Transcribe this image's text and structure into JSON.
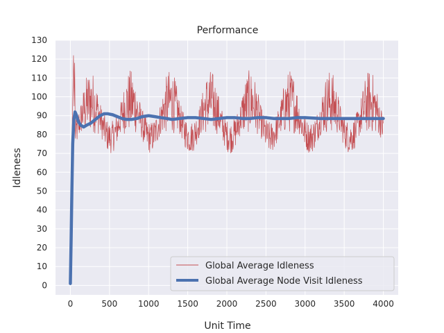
{
  "chart_data": {
    "type": "line",
    "title": "Performance",
    "xlabel": "Unit Time",
    "ylabel": "Idleness",
    "xlim": [
      -190,
      4190
    ],
    "ylim": [
      -5,
      130
    ],
    "xticks": [
      0,
      500,
      1000,
      1500,
      2000,
      2500,
      3000,
      3500,
      4000
    ],
    "xtick_labels": [
      "0",
      "500",
      "1000",
      "1500",
      "2000",
      "2500",
      "3000",
      "3500",
      "4000"
    ],
    "yticks": [
      0,
      10,
      20,
      30,
      40,
      50,
      60,
      70,
      80,
      90,
      100,
      110,
      120,
      130
    ],
    "ytick_labels": [
      "0",
      "10",
      "20",
      "30",
      "40",
      "50",
      "60",
      "70",
      "80",
      "90",
      "100",
      "110",
      "120",
      "130"
    ],
    "grid": true,
    "legend_position": "bottom-right",
    "series": [
      {
        "name": "Global Average Idleness",
        "color": "#c44e52",
        "linewidth": "thin",
        "generated": true,
        "x_range": [
          0,
          4000
        ],
        "baseline": 88,
        "oscillation_period": 510,
        "oscillation_amplitude": 12,
        "noise_amplitude": 14,
        "range_observed": [
          65,
          122
        ]
      },
      {
        "name": "Global Average Node Visit Idleness",
        "color": "#4c72b0",
        "linewidth": "thick",
        "x": [
          0,
          10,
          20,
          30,
          45,
          60,
          80,
          100,
          130,
          170,
          210,
          260,
          320,
          380,
          430,
          480,
          540,
          600,
          660,
          720,
          780,
          850,
          920,
          1000,
          1080,
          1150,
          1230,
          1300,
          1400,
          1500,
          1600,
          1700,
          1800,
          1900,
          2000,
          2100,
          2200,
          2300,
          2400,
          2500,
          2600,
          2700,
          2800,
          2900,
          3000,
          3200,
          3400,
          3600,
          3800,
          4000
        ],
        "y": [
          1,
          25,
          52,
          75,
          88,
          92,
          90,
          87,
          85,
          84,
          85,
          86,
          88,
          90,
          91,
          91,
          90.5,
          89.5,
          88.5,
          88,
          88,
          88.5,
          89.5,
          90,
          89.5,
          89,
          88.5,
          88,
          88.5,
          89,
          89,
          88.5,
          88,
          88.5,
          89,
          89,
          88.5,
          88.5,
          89,
          89,
          88.5,
          88.5,
          88.5,
          89,
          89,
          88.5,
          88.5,
          88.5,
          88.5,
          88.5
        ]
      }
    ]
  }
}
